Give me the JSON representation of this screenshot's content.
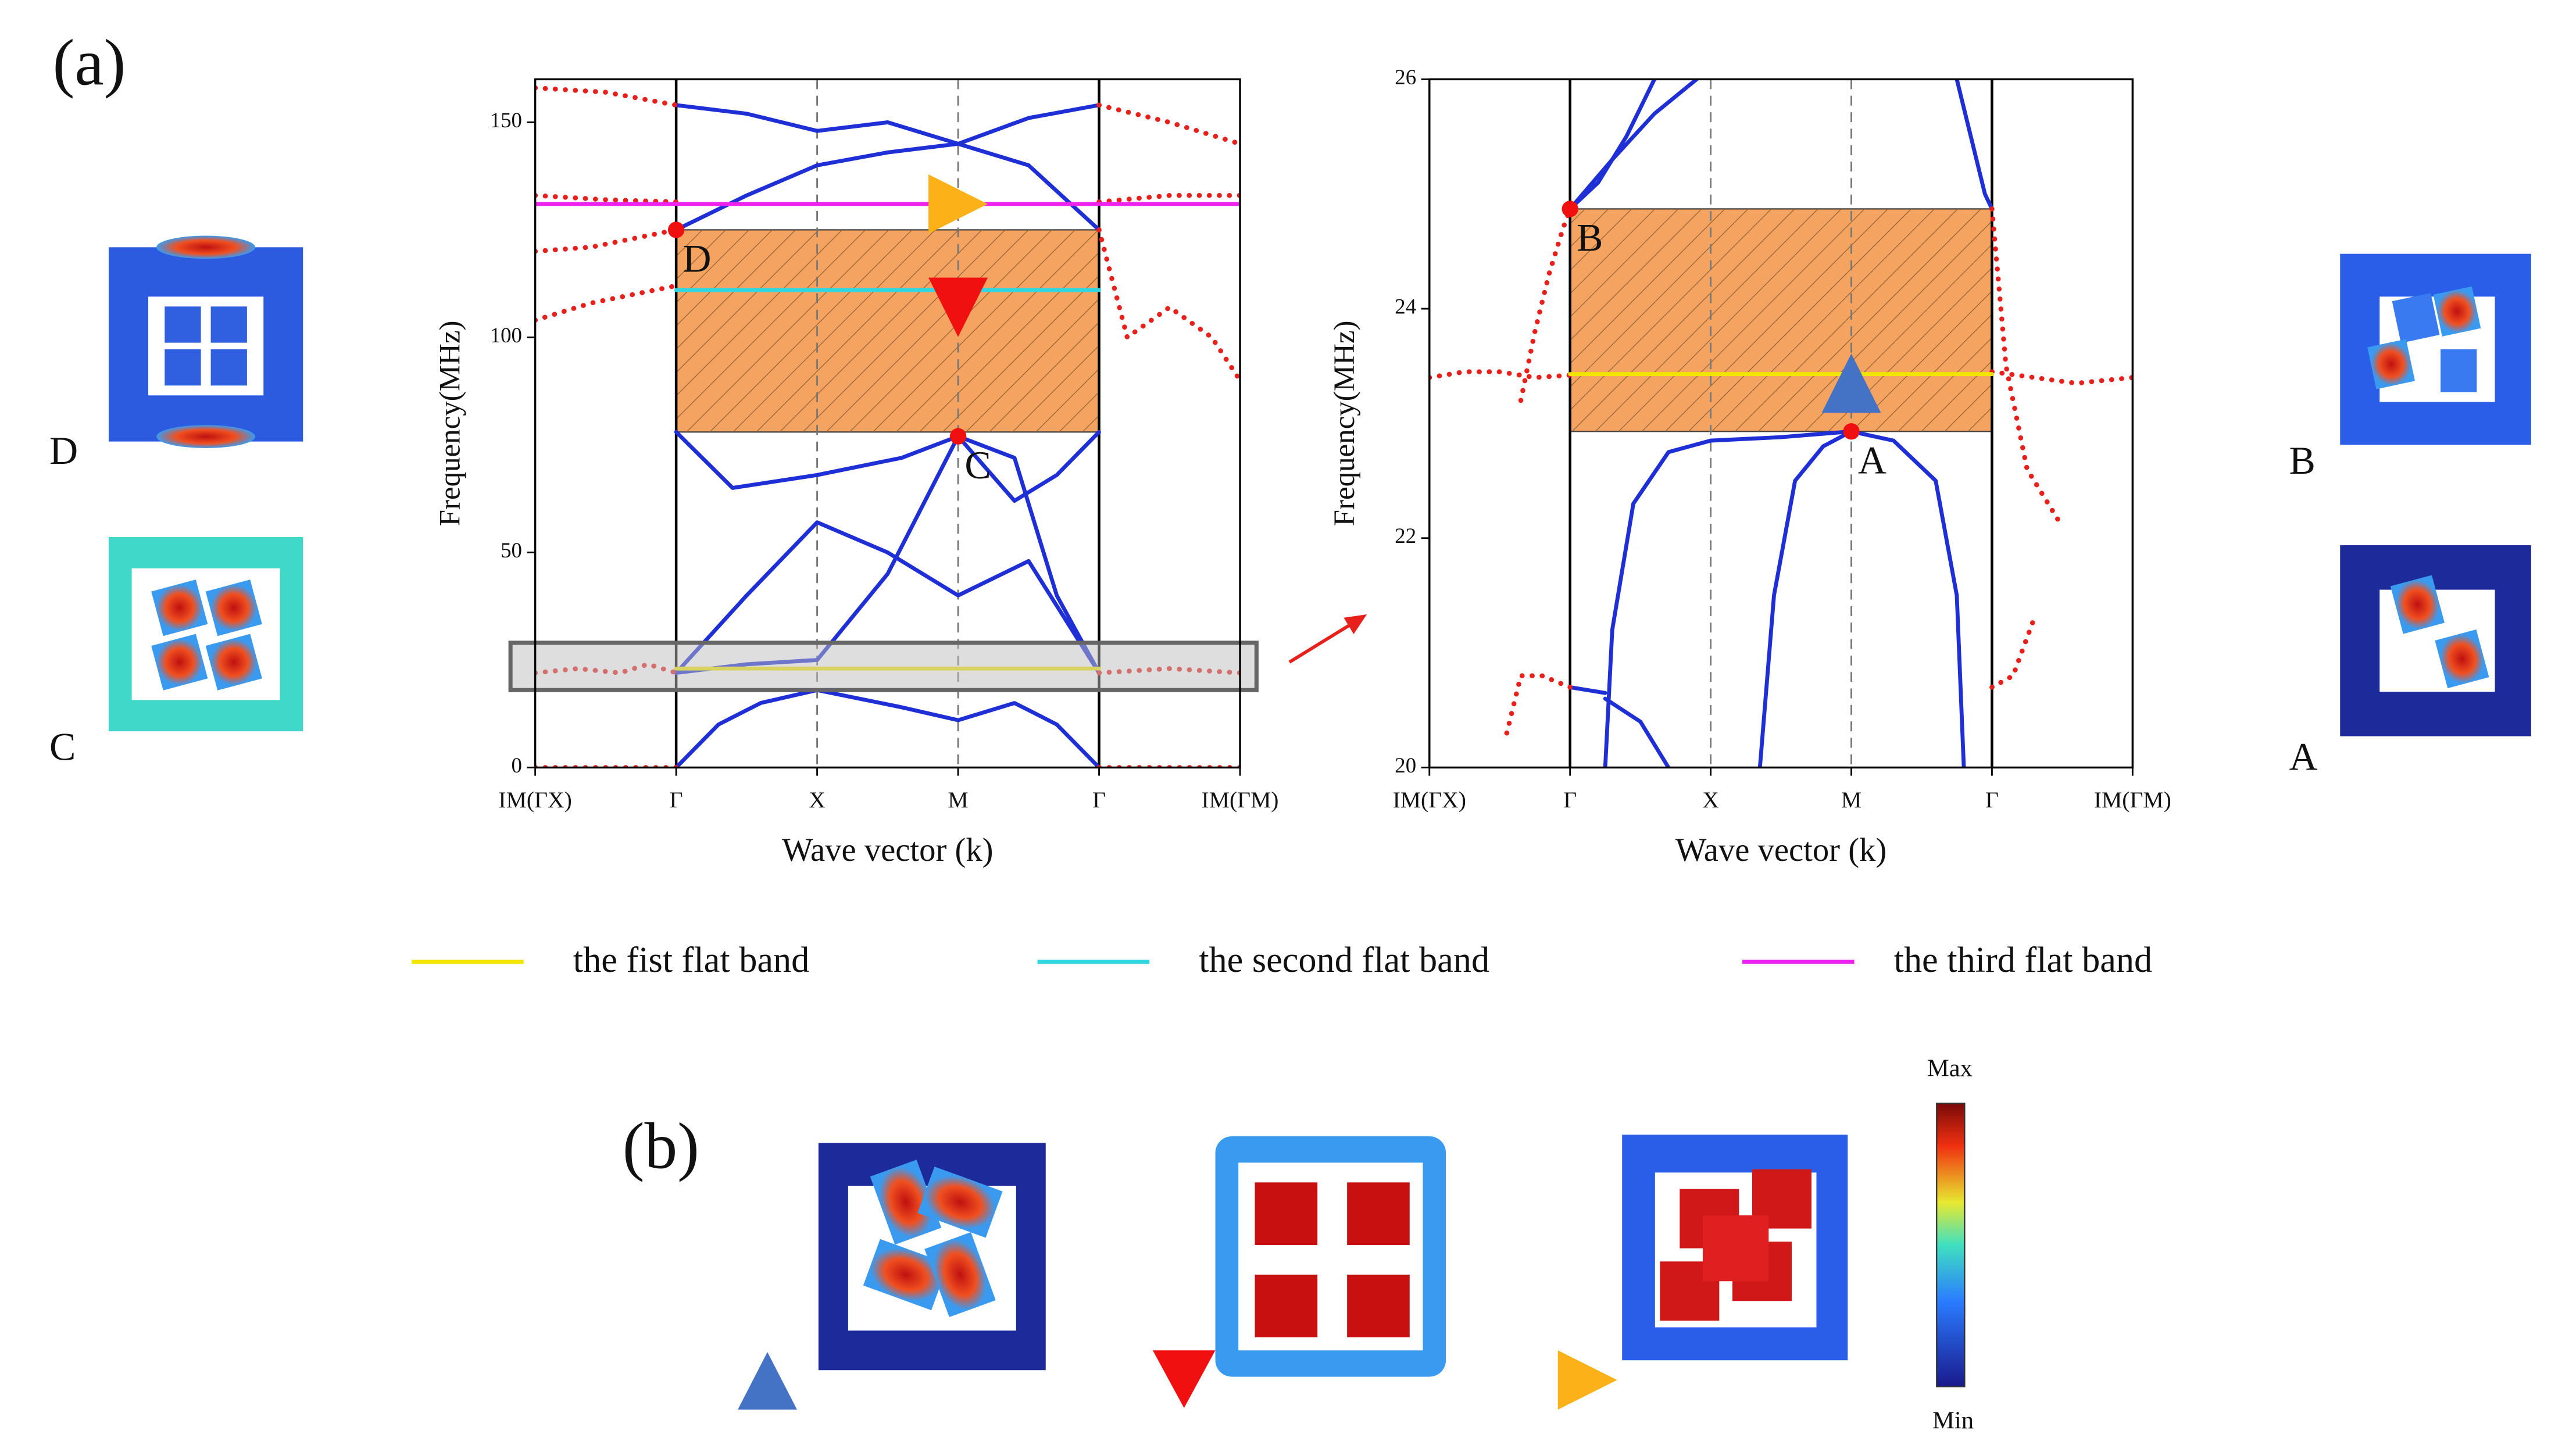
{
  "labels": {
    "a": "(a)",
    "b": "(b)",
    "D": "D",
    "C": "C",
    "B": "B",
    "A": "A",
    "max": "Max",
    "min": "Min"
  },
  "chart_data": [
    {
      "type": "line",
      "xlabel": "Wave vector (k)",
      "ylabel": "Frequency(MHz)",
      "xlim": [
        0,
        5
      ],
      "ylim": [
        0,
        160
      ],
      "xticks": [
        {
          "value": 0,
          "label": "IM(ΓX)"
        },
        {
          "value": 1,
          "label": "Γ"
        },
        {
          "value": 2,
          "label": "X"
        },
        {
          "value": 3,
          "label": "M"
        },
        {
          "value": 4,
          "label": "Γ"
        },
        {
          "value": 5,
          "label": "IM(ΓM)"
        }
      ],
      "yticks": [
        0,
        50,
        100,
        150
      ],
      "gap": {
        "x": [
          1,
          4
        ],
        "y": [
          78,
          125
        ],
        "color": "#f4a460"
      },
      "highlight": {
        "y": [
          18,
          29
        ]
      },
      "series": [
        {
          "color": "#1f2fd6",
          "style": "solid",
          "x": [
            1,
            1.3,
            1.6,
            2,
            2.6,
            3,
            3.4,
            3.7,
            4
          ],
          "values": [
            0,
            10,
            15,
            18,
            14,
            11,
            15,
            10,
            0
          ]
        },
        {
          "color": "#1f2fd6",
          "style": "solid",
          "x": [
            1,
            1.5,
            2,
            2.5,
            3,
            3.4,
            3.7,
            4
          ],
          "values": [
            22,
            24,
            25,
            45,
            77,
            72,
            40,
            22
          ]
        },
        {
          "color": "#1f2fd6",
          "style": "solid",
          "x": [
            1,
            1.5,
            2,
            2.5,
            3,
            3.5,
            4
          ],
          "values": [
            22,
            40,
            57,
            50,
            40,
            48,
            22
          ]
        },
        {
          "color": "#1f2fd6",
          "style": "solid",
          "x": [
            1,
            1.4,
            2,
            2.6,
            3,
            3.4,
            3.7,
            4
          ],
          "values": [
            78,
            65,
            68,
            72,
            77,
            62,
            68,
            78
          ]
        },
        {
          "color": "#1f2fd6",
          "style": "solid",
          "x": [
            1,
            1.5,
            2,
            2.5,
            3,
            3.5,
            4
          ],
          "values": [
            125,
            133,
            140,
            143,
            145,
            140,
            125
          ]
        },
        {
          "color": "#1f2fd6",
          "style": "solid",
          "x": [
            1,
            1.5,
            2,
            2.5,
            3,
            3.5,
            4
          ],
          "values": [
            154,
            152,
            148,
            150,
            145,
            151,
            154
          ]
        },
        {
          "color": "#e8201c",
          "style": "dotted",
          "x": [
            0,
            0.5,
            1
          ],
          "values": [
            0,
            0,
            0
          ]
        },
        {
          "color": "#e8201c",
          "style": "dotted",
          "x": [
            4,
            4.5,
            5
          ],
          "values": [
            0,
            0,
            0
          ]
        },
        {
          "color": "#e8201c",
          "style": "dotted",
          "x": [
            0,
            0.5,
            1
          ],
          "values": [
            158,
            157,
            154
          ]
        },
        {
          "color": "#e8201c",
          "style": "dotted",
          "x": [
            0,
            0.5,
            1
          ],
          "values": [
            133,
            132,
            131.5
          ]
        },
        {
          "color": "#e8201c",
          "style": "dotted",
          "x": [
            0,
            0.4,
            0.7,
            1
          ],
          "values": [
            120,
            121,
            123,
            125
          ]
        },
        {
          "color": "#e8201c",
          "style": "dotted",
          "x": [
            0,
            0.4,
            0.7,
            1
          ],
          "values": [
            104,
            108,
            110,
            112
          ]
        },
        {
          "color": "#e8201c",
          "style": "dotted",
          "x": [
            0,
            0.3,
            0.6,
            0.8,
            1
          ],
          "values": [
            22,
            23,
            22,
            24,
            22
          ]
        },
        {
          "color": "#e8201c",
          "style": "dotted",
          "x": [
            4,
            4.5,
            5
          ],
          "values": [
            154,
            150,
            145
          ]
        },
        {
          "color": "#e8201c",
          "style": "dotted",
          "x": [
            4,
            4.5,
            5
          ],
          "values": [
            131.5,
            133,
            133
          ]
        },
        {
          "color": "#e8201c",
          "style": "dotted",
          "x": [
            4,
            4.2,
            4.5,
            4.8,
            5
          ],
          "values": [
            125,
            100,
            107,
            100,
            90
          ]
        },
        {
          "color": "#e8201c",
          "style": "dotted",
          "x": [
            4,
            4.5,
            5
          ],
          "values": [
            22,
            23,
            22
          ]
        },
        {
          "name": "the fist flat band",
          "color": "#f2e600",
          "style": "solid",
          "x": [
            1,
            4
          ],
          "values": [
            23,
            23
          ]
        },
        {
          "name": "the second flat band",
          "color": "#2fd8e0",
          "style": "solid",
          "x": [
            1,
            4
          ],
          "values": [
            111,
            111
          ]
        },
        {
          "name": "the third flat band",
          "color": "#ee22ee",
          "style": "solid",
          "x": [
            0,
            5
          ],
          "values": [
            131,
            131
          ]
        }
      ],
      "points": [
        {
          "x": 1,
          "y": 125,
          "label": "D"
        },
        {
          "x": 3,
          "y": 77,
          "label": "C"
        }
      ],
      "markers": [
        {
          "x": 3,
          "y": 131,
          "shape": "right",
          "color": "#fbb117"
        },
        {
          "x": 3,
          "y": 107,
          "shape": "down",
          "color": "#f01010"
        }
      ]
    },
    {
      "type": "line",
      "xlabel": "Wave vector (k)",
      "ylabel": "Frequency(MHz)",
      "xlim": [
        0,
        5
      ],
      "ylim": [
        20,
        26
      ],
      "xticks": [
        {
          "value": 0,
          "label": "IM(ΓX)"
        },
        {
          "value": 1,
          "label": "Γ"
        },
        {
          "value": 2,
          "label": "X"
        },
        {
          "value": 3,
          "label": "M"
        },
        {
          "value": 4,
          "label": "Γ"
        },
        {
          "value": 5,
          "label": "IM(ΓM)"
        }
      ],
      "yticks": [
        20,
        22,
        24,
        26
      ],
      "gap": {
        "x": [
          1,
          4
        ],
        "y": [
          22.93,
          24.87
        ],
        "color": "#f4a460"
      },
      "series": [
        {
          "color": "#1f2fd6",
          "style": "solid",
          "x": [
            1,
            1.2,
            1.4,
            1.6
          ],
          "values": [
            24.87,
            25.1,
            25.5,
            26
          ]
        },
        {
          "color": "#1f2fd6",
          "style": "solid",
          "x": [
            1,
            1.3,
            1.6,
            1.9
          ],
          "values": [
            24.87,
            25.3,
            25.7,
            26
          ]
        },
        {
          "color": "#1f2fd6",
          "style": "solid",
          "x": [
            3.75,
            3.85,
            3.95,
            4
          ],
          "values": [
            26,
            25.5,
            25,
            24.87
          ]
        },
        {
          "color": "#1f2fd6",
          "style": "solid",
          "x": [
            1.25,
            1.3,
            1.45,
            1.7,
            2,
            2.5,
            3
          ],
          "values": [
            20,
            21.2,
            22.3,
            22.75,
            22.85,
            22.88,
            22.93
          ]
        },
        {
          "color": "#1f2fd6",
          "style": "solid",
          "x": [
            2.35,
            2.45,
            2.6,
            2.8,
            3,
            3.3,
            3.6,
            3.75,
            3.8
          ],
          "values": [
            20,
            21.5,
            22.5,
            22.8,
            22.93,
            22.85,
            22.5,
            21.5,
            20
          ]
        },
        {
          "color": "#1f2fd6",
          "style": "solid",
          "x": [
            1,
            1.25
          ],
          "values": [
            20.7,
            20.65
          ]
        },
        {
          "color": "#1f2fd6",
          "style": "solid",
          "x": [
            1.25,
            1.5,
            1.7
          ],
          "values": [
            20.6,
            20.4,
            20
          ]
        },
        {
          "color": "#e8201c",
          "style": "dotted",
          "x": [
            0,
            0.25,
            0.5,
            0.75,
            1
          ],
          "values": [
            23.4,
            23.45,
            23.45,
            23.4,
            23.42
          ]
        },
        {
          "color": "#e8201c",
          "style": "dotted",
          "x": [
            0.65,
            0.75,
            0.85,
            0.95,
            1
          ],
          "values": [
            23.2,
            23.8,
            24.3,
            24.7,
            24.87
          ]
        },
        {
          "color": "#e8201c",
          "style": "dotted",
          "x": [
            0.55,
            0.65,
            0.8,
            1
          ],
          "values": [
            20.3,
            20.8,
            20.8,
            20.7
          ]
        },
        {
          "color": "#e8201c",
          "style": "dotted",
          "x": [
            4,
            4.3,
            4.6,
            5
          ],
          "values": [
            23.45,
            23.4,
            23.35,
            23.4
          ]
        },
        {
          "color": "#e8201c",
          "style": "dotted",
          "x": [
            4,
            4.1,
            4.25,
            4.5
          ],
          "values": [
            24.87,
            23.5,
            22.6,
            22.1
          ]
        },
        {
          "color": "#e8201c",
          "style": "dotted",
          "x": [
            4,
            4.15,
            4.3
          ],
          "values": [
            20.7,
            20.8,
            21.3
          ]
        },
        {
          "color": "#f2e600",
          "style": "solid",
          "x": [
            1,
            4
          ],
          "values": [
            23.43,
            23.43
          ]
        }
      ],
      "points": [
        {
          "x": 1,
          "y": 24.87,
          "label": "B"
        },
        {
          "x": 3,
          "y": 22.93,
          "label": "A"
        }
      ],
      "markers": [
        {
          "x": 3,
          "y": 23.35,
          "shape": "up",
          "color": "#4472c4"
        }
      ]
    }
  ]
}
